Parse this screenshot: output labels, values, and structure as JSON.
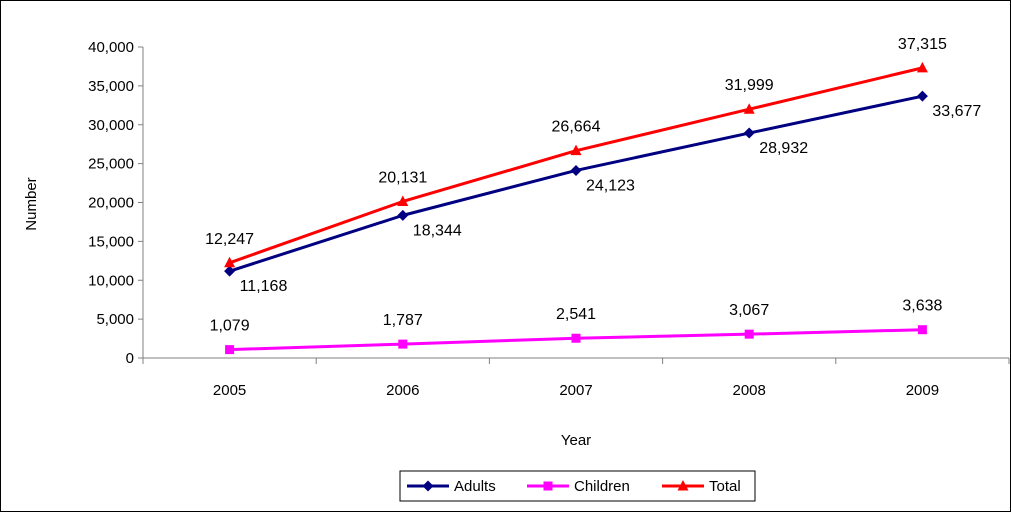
{
  "chart_data": {
    "type": "line",
    "title": "",
    "xlabel": "Year",
    "ylabel": "Number",
    "categories": [
      "2005",
      "2006",
      "2007",
      "2008",
      "2009"
    ],
    "ylim": [
      0,
      40000
    ],
    "yticks": [
      0,
      5000,
      10000,
      15000,
      20000,
      25000,
      30000,
      35000,
      40000
    ],
    "ytick_labels": [
      "0",
      "5,000",
      "10,000",
      "15,000",
      "20,000",
      "25,000",
      "30,000",
      "35,000",
      "40,000"
    ],
    "grid": false,
    "legend_position": "bottom",
    "series": [
      {
        "name": "Adults",
        "values": [
          11168,
          18344,
          24123,
          28932,
          33677
        ],
        "labels": [
          "11,168",
          "18,344",
          "24,123",
          "28,932",
          "33,677"
        ],
        "color": "#000080",
        "marker": "diamond",
        "label_placement": "below-right"
      },
      {
        "name": "Children",
        "values": [
          1079,
          1787,
          2541,
          3067,
          3638
        ],
        "labels": [
          "1,079",
          "1,787",
          "2,541",
          "3,067",
          "3,638"
        ],
        "color": "#FF00FF",
        "marker": "square",
        "label_placement": "above"
      },
      {
        "name": "Total",
        "values": [
          12247,
          20131,
          26664,
          31999,
          37315
        ],
        "labels": [
          "12,247",
          "20,131",
          "26,664",
          "31,999",
          "37,315"
        ],
        "color": "#FF0000",
        "marker": "triangle",
        "label_placement": "above"
      }
    ]
  }
}
